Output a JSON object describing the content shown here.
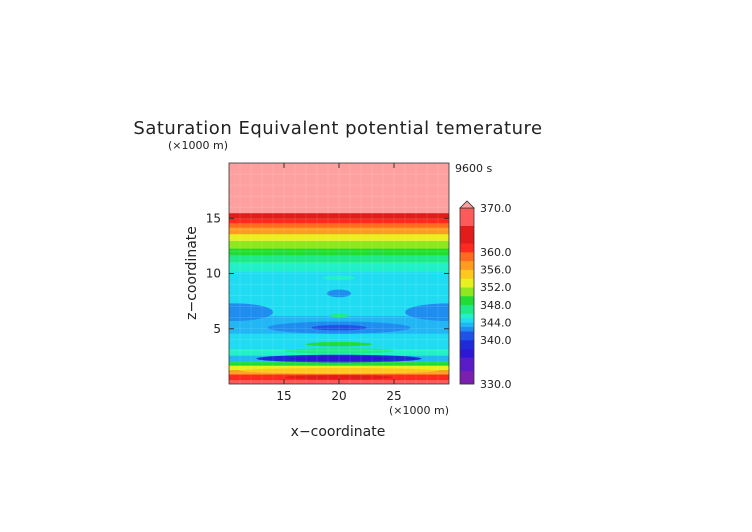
{
  "chart_data": {
    "type": "heatmap",
    "title": "Saturation Equivalent potential temerature",
    "time_label": "9600 s",
    "xlabel": "x−coordinate",
    "ylabel": "z−coordinate",
    "x_unit": "(×1000 m)",
    "y_unit": "(×1000 m)",
    "xlim": [
      10,
      30
    ],
    "ylim": [
      0,
      20
    ],
    "x_ticks": [
      15,
      20,
      25
    ],
    "y_ticks": [
      5,
      10,
      15
    ],
    "colorbar": {
      "range": [
        330.0,
        370.0
      ],
      "labels": [
        "370.0",
        "360.0",
        "356.0",
        "352.0",
        "348.0",
        "344.0",
        "340.0",
        "330.0"
      ],
      "label_values": [
        370,
        360,
        356,
        352,
        348,
        344,
        340,
        330
      ],
      "levels": [
        {
          "value": 330,
          "color": "#7a1fb0"
        },
        {
          "value": 333,
          "color": "#5a1bc8"
        },
        {
          "value": 336,
          "color": "#2d16d6"
        },
        {
          "value": 338,
          "color": "#1f2bd8"
        },
        {
          "value": 340,
          "color": "#1f52e6"
        },
        {
          "value": 342,
          "color": "#1f8df0"
        },
        {
          "value": 343,
          "color": "#22b6f5"
        },
        {
          "value": 344,
          "color": "#20dcf2"
        },
        {
          "value": 345,
          "color": "#22f0c8"
        },
        {
          "value": 346,
          "color": "#1fea8a"
        },
        {
          "value": 348,
          "color": "#22dc36"
        },
        {
          "value": 350,
          "color": "#8fe81f"
        },
        {
          "value": 352,
          "color": "#e8f01f"
        },
        {
          "value": 354,
          "color": "#ffc81f"
        },
        {
          "value": 356,
          "color": "#ff9b1f"
        },
        {
          "value": 358,
          "color": "#ff6a1f"
        },
        {
          "value": 360,
          "color": "#ff2a1f"
        },
        {
          "value": 362,
          "color": "#e21b1b"
        },
        {
          "value": 366,
          "color": "#ff5a5a"
        },
        {
          "value": 370,
          "color": "#ffa0a0"
        }
      ]
    },
    "layers": [
      {
        "z": [
          0.0,
          0.4
        ],
        "value": 368
      },
      {
        "z": [
          0.4,
          0.9
        ],
        "value": 361
      },
      {
        "z": [
          0.9,
          1.3
        ],
        "value": 356
      },
      {
        "z": [
          1.3,
          1.7
        ],
        "value": 352
      },
      {
        "z": [
          1.7,
          2.1
        ],
        "value": 348
      },
      {
        "z": [
          2.1,
          2.6
        ],
        "value": 343
      },
      {
        "z": [
          2.6,
          3.2
        ],
        "value": 345
      },
      {
        "z": [
          3.2,
          3.8
        ],
        "value": 344
      },
      {
        "z": [
          3.8,
          4.6
        ],
        "value": 344
      },
      {
        "z": [
          4.6,
          6.2
        ],
        "value": 343
      },
      {
        "z": [
          6.2,
          10.2
        ],
        "value": 344
      },
      {
        "z": [
          10.2,
          11.0
        ],
        "value": 345
      },
      {
        "z": [
          11.0,
          11.7
        ],
        "value": 347
      },
      {
        "z": [
          11.7,
          12.3
        ],
        "value": 348
      },
      {
        "z": [
          12.3,
          13.0
        ],
        "value": 350
      },
      {
        "z": [
          13.0,
          13.6
        ],
        "value": 352
      },
      {
        "z": [
          13.6,
          14.2
        ],
        "value": 356
      },
      {
        "z": [
          14.2,
          14.6
        ],
        "value": 358
      },
      {
        "z": [
          14.6,
          15.0
        ],
        "value": 361
      },
      {
        "z": [
          15.0,
          15.5
        ],
        "value": 364
      },
      {
        "z": [
          15.5,
          20.0
        ],
        "value": 370
      }
    ],
    "anomalies": [
      {
        "x": 20,
        "z": 2.3,
        "rx": 7.5,
        "rz": 0.35,
        "value": 338
      },
      {
        "x": 20,
        "z": 2.3,
        "rx": 4.5,
        "rz": 0.25,
        "value": 336
      },
      {
        "x": 20,
        "z": 1.2,
        "rx": 9.0,
        "rz": 0.25,
        "value": 354
      },
      {
        "x": 20,
        "z": 0.6,
        "rx": 5.0,
        "rz": 0.2,
        "value": 362
      },
      {
        "x": 20,
        "z": 3.0,
        "rx": 5.0,
        "rz": 0.25,
        "value": 346
      },
      {
        "x": 20,
        "z": 3.6,
        "rx": 3.0,
        "rz": 0.2,
        "value": 348
      },
      {
        "x": 20,
        "z": 5.1,
        "rx": 6.5,
        "rz": 0.55,
        "value": 342
      },
      {
        "x": 20,
        "z": 5.1,
        "rx": 2.5,
        "rz": 0.25,
        "value": 340
      },
      {
        "x": 20,
        "z": 6.2,
        "rx": 1.0,
        "rz": 0.15,
        "value": 346
      },
      {
        "x": 10.5,
        "z": 6.5,
        "rx": 3.5,
        "rz": 0.8,
        "value": 342
      },
      {
        "x": 30.0,
        "z": 6.5,
        "rx": 4.0,
        "rz": 0.8,
        "value": 342
      },
      {
        "x": 20,
        "z": 8.2,
        "rx": 1.1,
        "rz": 0.35,
        "value": 342
      },
      {
        "x": 20,
        "z": 9.6,
        "rx": 1.5,
        "rz": 0.2,
        "value": 345
      }
    ]
  }
}
